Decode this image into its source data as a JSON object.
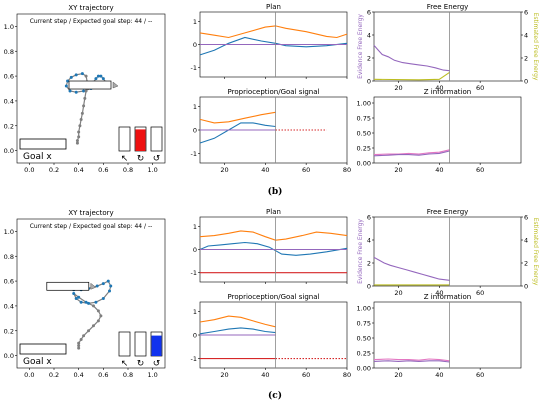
{
  "captions": [
    "(b)",
    "(c)"
  ],
  "figures": [
    {
      "caption": "(b)",
      "xy_title": "XY trajectory",
      "step_text": "Current step / Expected goal step: 44 / --",
      "goal_label": "Goal x",
      "xy_x_ticks": [
        "0.0",
        "0.2",
        "0.4",
        "0.6",
        "0.8",
        "1.0"
      ],
      "xy_y_ticks": [
        "0.0",
        "0.2",
        "0.4",
        "0.6",
        "0.8",
        "1.0"
      ],
      "plan_title": "Plan",
      "prop_title": "Proprioception/Goal signal",
      "fe_title": "Free Energy",
      "z_title": "Z information",
      "fe_left_label": "Evidence Free Energy",
      "fe_right_label": "Estimated Free Energy",
      "plan_y_ticks": [
        "1",
        "0",
        "-1"
      ],
      "fe_y_ticks": [
        "6",
        "4",
        "2",
        "0"
      ],
      "z_y_ticks": [
        "1.00",
        "0.75",
        "0.50",
        "0.25",
        "0.00"
      ],
      "mid_x_ticks": [
        "20",
        "40",
        "60",
        "80"
      ],
      "right_x_ticks": [
        "20",
        "40",
        "60"
      ],
      "indicator_symbols": [
        "↖",
        "↻",
        "↺"
      ],
      "indicator_fill": [
        0,
        0.9,
        0
      ],
      "indicator_color": "#ee1111",
      "chart_data": [
        {
          "type": "scatter",
          "panel": "xy_trajectory",
          "xlim": [
            -0.1,
            1.1
          ],
          "ylim": [
            -0.1,
            1.1
          ],
          "x": [
            0.5,
            0.52,
            0.54,
            0.56,
            0.58,
            0.6,
            0.62,
            0.6,
            0.55,
            0.5,
            0.44,
            0.38,
            0.33,
            0.3,
            0.31,
            0.34,
            0.38,
            0.43,
            0.46,
            0.47,
            0.46,
            0.45,
            0.44,
            0.43,
            0.42,
            0.41,
            0.4,
            0.4,
            0.39,
            0.39
          ],
          "y": [
            0.52,
            0.55,
            0.58,
            0.6,
            0.6,
            0.58,
            0.55,
            0.52,
            0.51,
            0.5,
            0.48,
            0.47,
            0.48,
            0.52,
            0.56,
            0.59,
            0.61,
            0.62,
            0.6,
            0.55,
            0.48,
            0.42,
            0.36,
            0.3,
            0.25,
            0.2,
            0.15,
            0.11,
            0.08,
            0.06
          ]
        },
        {
          "type": "line",
          "panel": "plan",
          "xlim": [
            8,
            80
          ],
          "ylim": [
            -1.4,
            1.4
          ],
          "vline": 45,
          "series": [
            {
              "color": "#ff7f0e",
              "x": [
                8,
                15,
                22,
                30,
                40,
                45,
                50,
                60,
                70,
                75,
                80
              ],
              "y": [
                0.5,
                0.4,
                0.3,
                0.5,
                0.75,
                0.8,
                0.7,
                0.55,
                0.35,
                0.3,
                0.45
              ]
            },
            {
              "color": "#1f77b4",
              "x": [
                8,
                15,
                22,
                30,
                38,
                45,
                50,
                60,
                70,
                80
              ],
              "y": [
                -0.45,
                -0.25,
                0.05,
                0.3,
                0.15,
                0.05,
                -0.05,
                -0.1,
                -0.05,
                0.05
              ]
            },
            {
              "color": "#9467bd",
              "x": [
                8,
                80
              ],
              "y": [
                0,
                0
              ]
            }
          ]
        },
        {
          "type": "line",
          "panel": "proprioception_goal",
          "xlim": [
            8,
            80
          ],
          "ylim": [
            -1.4,
            1.4
          ],
          "vline": 45,
          "series": [
            {
              "color": "#ff7f0e",
              "x": [
                8,
                15,
                22,
                30,
                38,
                45
              ],
              "y": [
                0.45,
                0.3,
                0.35,
                0.5,
                0.65,
                0.75
              ]
            },
            {
              "color": "#1f77b4",
              "x": [
                8,
                15,
                22,
                28,
                34,
                40,
                45
              ],
              "y": [
                -0.55,
                -0.35,
                0.0,
                0.3,
                0.3,
                0.2,
                0.15
              ]
            },
            {
              "color": "#9467bd",
              "x": [
                8,
                45
              ],
              "y": [
                0,
                0
              ]
            },
            {
              "color": "#d62728",
              "dashed": true,
              "x": [
                45,
                70
              ],
              "y": [
                0,
                0
              ]
            }
          ]
        },
        {
          "type": "line",
          "panel": "free_energy",
          "xlim": [
            8,
            80
          ],
          "ylim": [
            0,
            6
          ],
          "vline": 45,
          "series": [
            {
              "color": "#9467bd",
              "x": [
                8,
                10,
                12,
                15,
                18,
                22,
                26,
                30,
                34,
                38,
                42,
                45
              ],
              "y": [
                3.1,
                2.7,
                2.3,
                2.1,
                1.8,
                1.6,
                1.5,
                1.4,
                1.3,
                1.15,
                0.95,
                0.9
              ]
            },
            {
              "color": "#bcbd22",
              "x": [
                8,
                30,
                40,
                45
              ],
              "y": [
                0.15,
                0.1,
                0.15,
                0.75
              ]
            }
          ]
        },
        {
          "type": "line",
          "panel": "z_information",
          "xlim": [
            8,
            80
          ],
          "ylim": [
            0,
            1.1
          ],
          "vline": 45,
          "series": [
            {
              "color": "#e377c2",
              "x": [
                8,
                15,
                20,
                25,
                30,
                35,
                40,
                45
              ],
              "y": [
                0.14,
                0.15,
                0.15,
                0.16,
                0.15,
                0.17,
                0.18,
                0.22
              ]
            },
            {
              "color": "#9467bd",
              "x": [
                8,
                15,
                20,
                25,
                30,
                35,
                40,
                45
              ],
              "y": [
                0.12,
                0.13,
                0.14,
                0.14,
                0.13,
                0.15,
                0.16,
                0.2
              ]
            }
          ]
        }
      ]
    },
    {
      "caption": "(c)",
      "xy_title": "XY trajectory",
      "step_text": "Current step / Expected goal step: 44 / --",
      "goal_label": "Goal x",
      "xy_x_ticks": [
        "0.0",
        "0.2",
        "0.4",
        "0.6",
        "0.8",
        "1.0"
      ],
      "xy_y_ticks": [
        "0.0",
        "0.2",
        "0.4",
        "0.6",
        "0.8",
        "1.0"
      ],
      "plan_title": "Plan",
      "prop_title": "Proprioception/Goal signal",
      "fe_title": "Free Energy",
      "z_title": "Z information",
      "fe_left_label": "Evidence Free Energy",
      "fe_right_label": "Estimated Free Energy",
      "plan_y_ticks": [
        "1",
        "0",
        "-1"
      ],
      "fe_y_ticks": [
        "6",
        "4",
        "2",
        "0"
      ],
      "z_y_ticks": [
        "1.00",
        "0.75",
        "0.50",
        "0.25",
        "0.00"
      ],
      "mid_x_ticks": [
        "20",
        "40",
        "60",
        "80"
      ],
      "right_x_ticks": [
        "20",
        "40",
        "60"
      ],
      "indicator_symbols": [
        "↖",
        "↻",
        "↺"
      ],
      "indicator_fill": [
        0,
        0,
        0.85
      ],
      "indicator_color": "#1133ee",
      "chart_data": [
        {
          "type": "scatter",
          "panel": "xy_trajectory",
          "xlim": [
            -0.1,
            1.1
          ],
          "ylim": [
            -0.1,
            1.1
          ],
          "x": [
            0.32,
            0.36,
            0.42,
            0.48,
            0.55,
            0.6,
            0.64,
            0.66,
            0.65,
            0.6,
            0.54,
            0.48,
            0.42,
            0.38,
            0.36,
            0.4,
            0.46,
            0.52,
            0.56,
            0.58,
            0.56,
            0.52,
            0.48,
            0.44,
            0.42,
            0.4,
            0.4,
            0.4
          ],
          "y": [
            0.55,
            0.53,
            0.53,
            0.54,
            0.56,
            0.58,
            0.6,
            0.56,
            0.52,
            0.46,
            0.43,
            0.42,
            0.43,
            0.46,
            0.5,
            0.47,
            0.43,
            0.4,
            0.36,
            0.32,
            0.28,
            0.24,
            0.2,
            0.16,
            0.13,
            0.1,
            0.08,
            0.06
          ]
        },
        {
          "type": "line",
          "panel": "plan",
          "xlim": [
            8,
            80
          ],
          "ylim": [
            -1.4,
            1.4
          ],
          "vline": 45,
          "series": [
            {
              "color": "#ff7f0e",
              "x": [
                8,
                15,
                22,
                28,
                34,
                40,
                45,
                50,
                58,
                65,
                72,
                80
              ],
              "y": [
                0.55,
                0.6,
                0.7,
                0.8,
                0.75,
                0.55,
                0.4,
                0.45,
                0.6,
                0.75,
                0.7,
                0.6
              ]
            },
            {
              "color": "#1f77b4",
              "x": [
                8,
                12,
                18,
                24,
                30,
                36,
                42,
                48,
                55,
                62,
                70,
                80
              ],
              "y": [
                0.0,
                0.15,
                0.2,
                0.25,
                0.3,
                0.25,
                0.1,
                -0.2,
                -0.25,
                -0.2,
                -0.1,
                0.05
              ]
            },
            {
              "color": "#9467bd",
              "x": [
                8,
                80
              ],
              "y": [
                0,
                0
              ]
            },
            {
              "color": "#d62728",
              "x": [
                8,
                80
              ],
              "y": [
                -1,
                -1
              ]
            }
          ]
        },
        {
          "type": "line",
          "panel": "proprioception_goal",
          "xlim": [
            8,
            80
          ],
          "ylim": [
            -1.4,
            1.4
          ],
          "vline": 45,
          "series": [
            {
              "color": "#ff7f0e",
              "x": [
                8,
                15,
                22,
                28,
                34,
                40,
                45
              ],
              "y": [
                0.55,
                0.65,
                0.8,
                0.75,
                0.6,
                0.45,
                0.35
              ]
            },
            {
              "color": "#1f77b4",
              "x": [
                8,
                15,
                22,
                28,
                34,
                40,
                45
              ],
              "y": [
                0.05,
                0.15,
                0.25,
                0.3,
                0.25,
                0.15,
                0.1
              ]
            },
            {
              "color": "#9467bd",
              "x": [
                8,
                45
              ],
              "y": [
                0,
                0
              ]
            },
            {
              "color": "#d62728",
              "x": [
                8,
                45
              ],
              "y": [
                -1,
                -1
              ]
            },
            {
              "color": "#d62728",
              "dashed": true,
              "x": [
                45,
                80
              ],
              "y": [
                -1,
                -1
              ]
            }
          ]
        },
        {
          "type": "line",
          "panel": "free_energy",
          "xlim": [
            8,
            80
          ],
          "ylim": [
            0,
            6
          ],
          "vline": 45,
          "series": [
            {
              "color": "#9467bd",
              "x": [
                8,
                10,
                13,
                16,
                20,
                24,
                28,
                32,
                36,
                40,
                45
              ],
              "y": [
                2.5,
                2.3,
                2.0,
                1.8,
                1.6,
                1.4,
                1.2,
                1.0,
                0.8,
                0.6,
                0.5
              ]
            },
            {
              "color": "#bcbd22",
              "x": [
                8,
                45
              ],
              "y": [
                0.1,
                0.1
              ]
            }
          ]
        },
        {
          "type": "line",
          "panel": "z_information",
          "xlim": [
            8,
            80
          ],
          "ylim": [
            0,
            1.1
          ],
          "vline": 45,
          "series": [
            {
              "color": "#e377c2",
              "x": [
                8,
                15,
                20,
                25,
                30,
                35,
                40,
                45
              ],
              "y": [
                0.14,
                0.15,
                0.14,
                0.14,
                0.13,
                0.15,
                0.14,
                0.12
              ]
            },
            {
              "color": "#9467bd",
              "x": [
                8,
                15,
                20,
                25,
                30,
                35,
                40,
                45
              ],
              "y": [
                0.11,
                0.12,
                0.11,
                0.12,
                0.11,
                0.12,
                0.12,
                0.1
              ]
            }
          ]
        }
      ]
    }
  ]
}
